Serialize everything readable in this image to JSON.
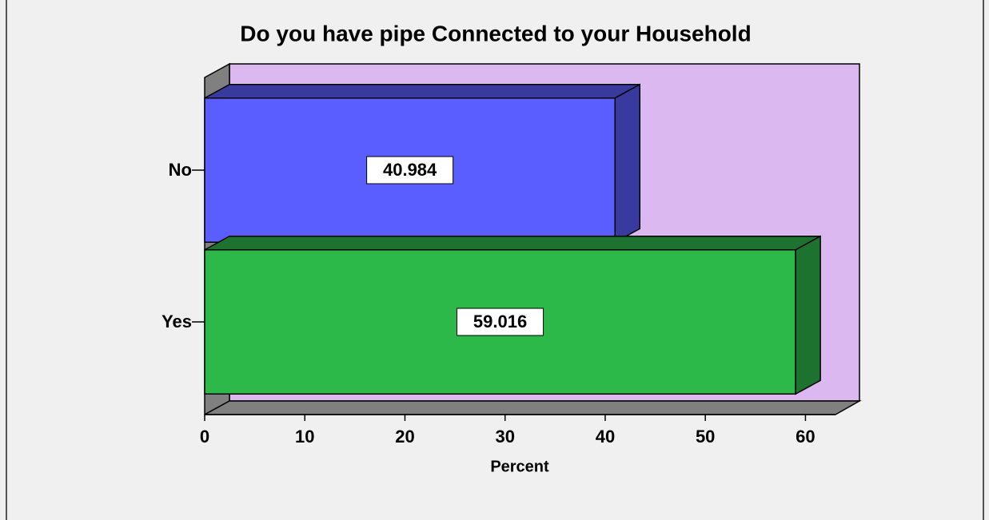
{
  "chart_data": {
    "type": "bar",
    "orientation": "horizontal",
    "title": "Do you have pipe Connected to your Household",
    "x_label": "Percent",
    "categories": [
      "No",
      "Yes"
    ],
    "values": [
      40.984,
      59.016
    ],
    "colors": [
      "#5a5eff",
      "#2db84a"
    ],
    "xlim": [
      0,
      63
    ],
    "xticks": [
      0,
      10,
      20,
      30,
      40,
      50,
      60
    ],
    "plot_color": "#dcb8f0"
  }
}
